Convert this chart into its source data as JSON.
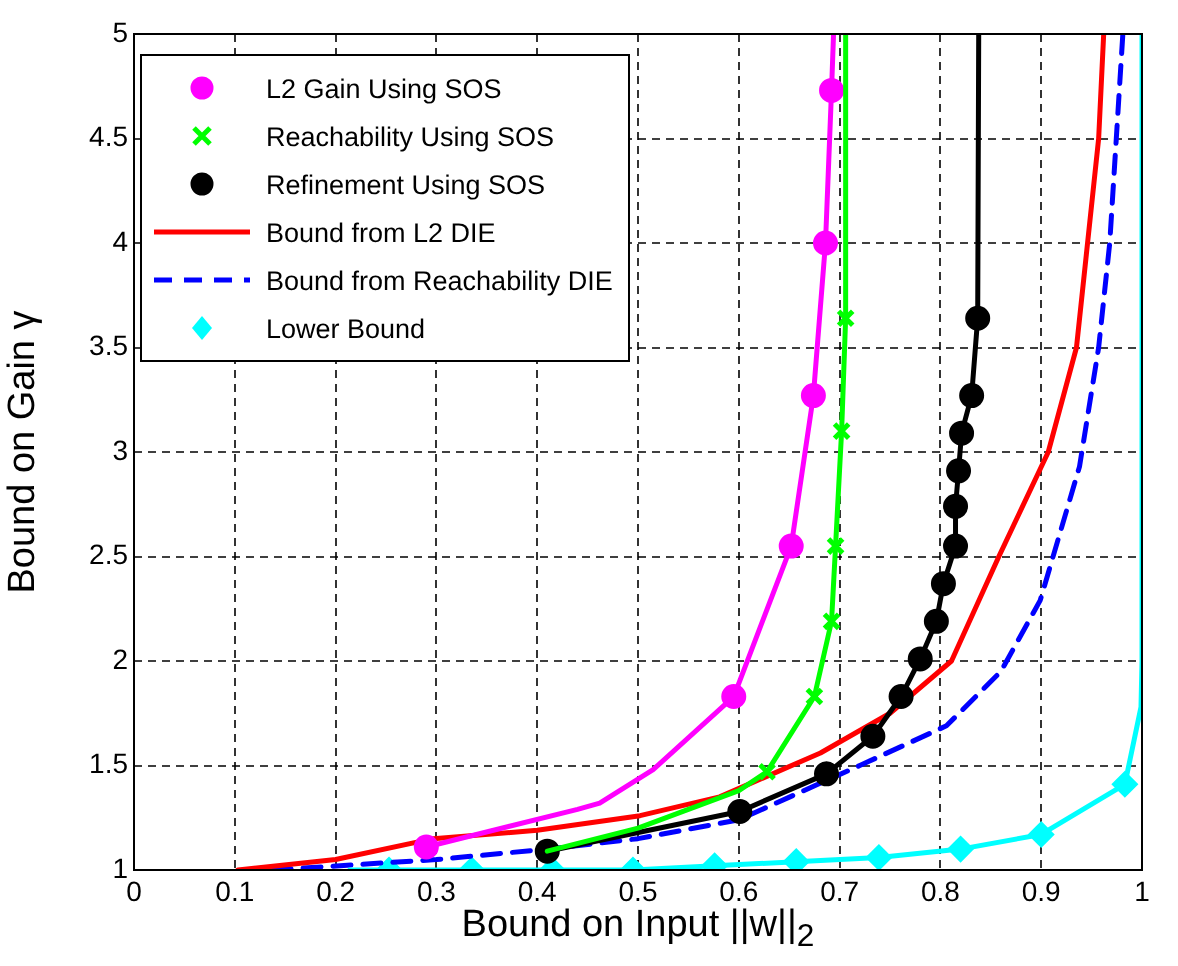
{
  "chart_data": {
    "type": "line",
    "xlabel": "Bound on Input ||w||$_{2}$",
    "ylabel": "Bound on Gain γ",
    "xlim": [
      0,
      1
    ],
    "xticks": [
      0,
      0.1,
      0.2,
      0.3,
      0.4,
      0.5,
      0.6,
      0.7,
      0.8,
      0.9,
      1
    ],
    "ylim": [
      1,
      5
    ],
    "yticks": [
      1,
      1.5,
      2,
      2.5,
      3,
      3.5,
      4,
      4.5,
      5
    ],
    "grid": true,
    "legend": "top left",
    "line_style": "solid",
    "series": [
      {
        "color": "#ff00ff",
        "marker": "none",
        "x": [
          0.29,
          0.44,
          0.462,
          0.515,
          0.595,
          0.652,
          0.674,
          0.686,
          0.692,
          0.694
        ],
        "values": [
          1.11,
          1.29,
          1.32,
          1.48,
          1.83,
          2.55,
          3.27,
          4.0,
          4.73,
          5
        ]
      },
      {
        "color": "#00ff00",
        "marker": "none",
        "x": [
          0.41,
          0.5,
          0.6,
          0.628,
          0.675,
          0.692,
          0.696,
          0.702,
          0.706,
          0.706
        ],
        "values": [
          1.09,
          1.2,
          1.38,
          1.47,
          1.83,
          2.19,
          2.55,
          3.1,
          3.64,
          5
        ]
      },
      {
        "color": "#000000",
        "marker": "none",
        "x": [
          0.41,
          0.601,
          0.687,
          0.733,
          0.761,
          0.78,
          0.796,
          0.803,
          0.815,
          0.815,
          0.818,
          0.821,
          0.831,
          0.837,
          0.838
        ],
        "values": [
          1.09,
          1.28,
          1.46,
          1.64,
          1.83,
          2.01,
          2.19,
          2.37,
          2.55,
          2.74,
          2.91,
          3.09,
          3.27,
          3.64,
          5
        ]
      },
      {
        "color": "#00ffff",
        "marker": "none",
        "x": [
          0.214,
          0.253,
          0.335,
          0.415,
          0.495,
          0.576,
          0.657,
          0.739,
          0.82,
          0.9,
          0.983,
          0.999,
          1,
          1
        ],
        "values": [
          1,
          1,
          1,
          1,
          1,
          1.02,
          1.04,
          1.06,
          1.1,
          1.17,
          1.41,
          1.78,
          2,
          5
        ]
      },
      {
        "type": "scatter",
        "name": "L2 Gain Using SOS",
        "color": "#ff00ff",
        "marker": "circle",
        "x": [
          0.29,
          0.595,
          0.652,
          0.674,
          0.686,
          0.692
        ],
        "values": [
          1.11,
          1.83,
          2.55,
          3.27,
          4.0,
          4.73
        ]
      },
      {
        "type": "scatter",
        "name": "Reachability Using SOS",
        "color": "#00ff00",
        "marker": "cross",
        "x": [
          0.628,
          0.675,
          0.692,
          0.696,
          0.702,
          0.706
        ],
        "values": [
          1.47,
          1.83,
          2.19,
          2.55,
          3.1,
          3.64
        ]
      },
      {
        "type": "scatter",
        "name": "Refinement Using SOS",
        "color": "#000000",
        "marker": "circle",
        "x": [
          0.41,
          0.601,
          0.687,
          0.733,
          0.761,
          0.78,
          0.796,
          0.803,
          0.815,
          0.815,
          0.818,
          0.821,
          0.831,
          0.837
        ],
        "values": [
          1.09,
          1.28,
          1.46,
          1.64,
          1.83,
          2.01,
          2.19,
          2.37,
          2.55,
          2.74,
          2.91,
          3.09,
          3.27,
          3.64
        ]
      },
      {
        "name": "Bound from L2 DIE",
        "color": "#ff0000",
        "marker": "none",
        "x": [
          0.103,
          0.2,
          0.297,
          0.4,
          0.502,
          0.581,
          0.681,
          0.75,
          0.811,
          0.858,
          0.907,
          0.935,
          0.957,
          0.962
        ],
        "values": [
          1.0,
          1.05,
          1.15,
          1.19,
          1.26,
          1.35,
          1.56,
          1.75,
          2.0,
          2.5,
          3.0,
          3.5,
          4.5,
          5
        ]
      },
      {
        "name": "Bound from Reachability DIE",
        "color": "#0000ff",
        "marker": "none",
        "line_style": "dashed",
        "x": [
          0.138,
          0.3,
          0.41,
          0.5,
          0.6,
          0.72,
          0.806,
          0.86,
          0.899,
          0.938,
          0.957,
          0.968,
          0.981
        ],
        "values": [
          1.0,
          1.05,
          1.1,
          1.15,
          1.24,
          1.5,
          1.69,
          1.95,
          2.29,
          2.93,
          3.5,
          4.0,
          5
        ]
      },
      {
        "type": "scatter",
        "name": "Lower Bound",
        "color": "#00ffff",
        "marker": "diamond",
        "x": [
          0.253,
          0.335,
          0.415,
          0.495,
          0.576,
          0.657,
          0.739,
          0.82,
          0.9,
          0.983
        ],
        "values": [
          1,
          1,
          1,
          1,
          1.02,
          1.04,
          1.06,
          1.1,
          1.17,
          1.41
        ]
      }
    ]
  }
}
